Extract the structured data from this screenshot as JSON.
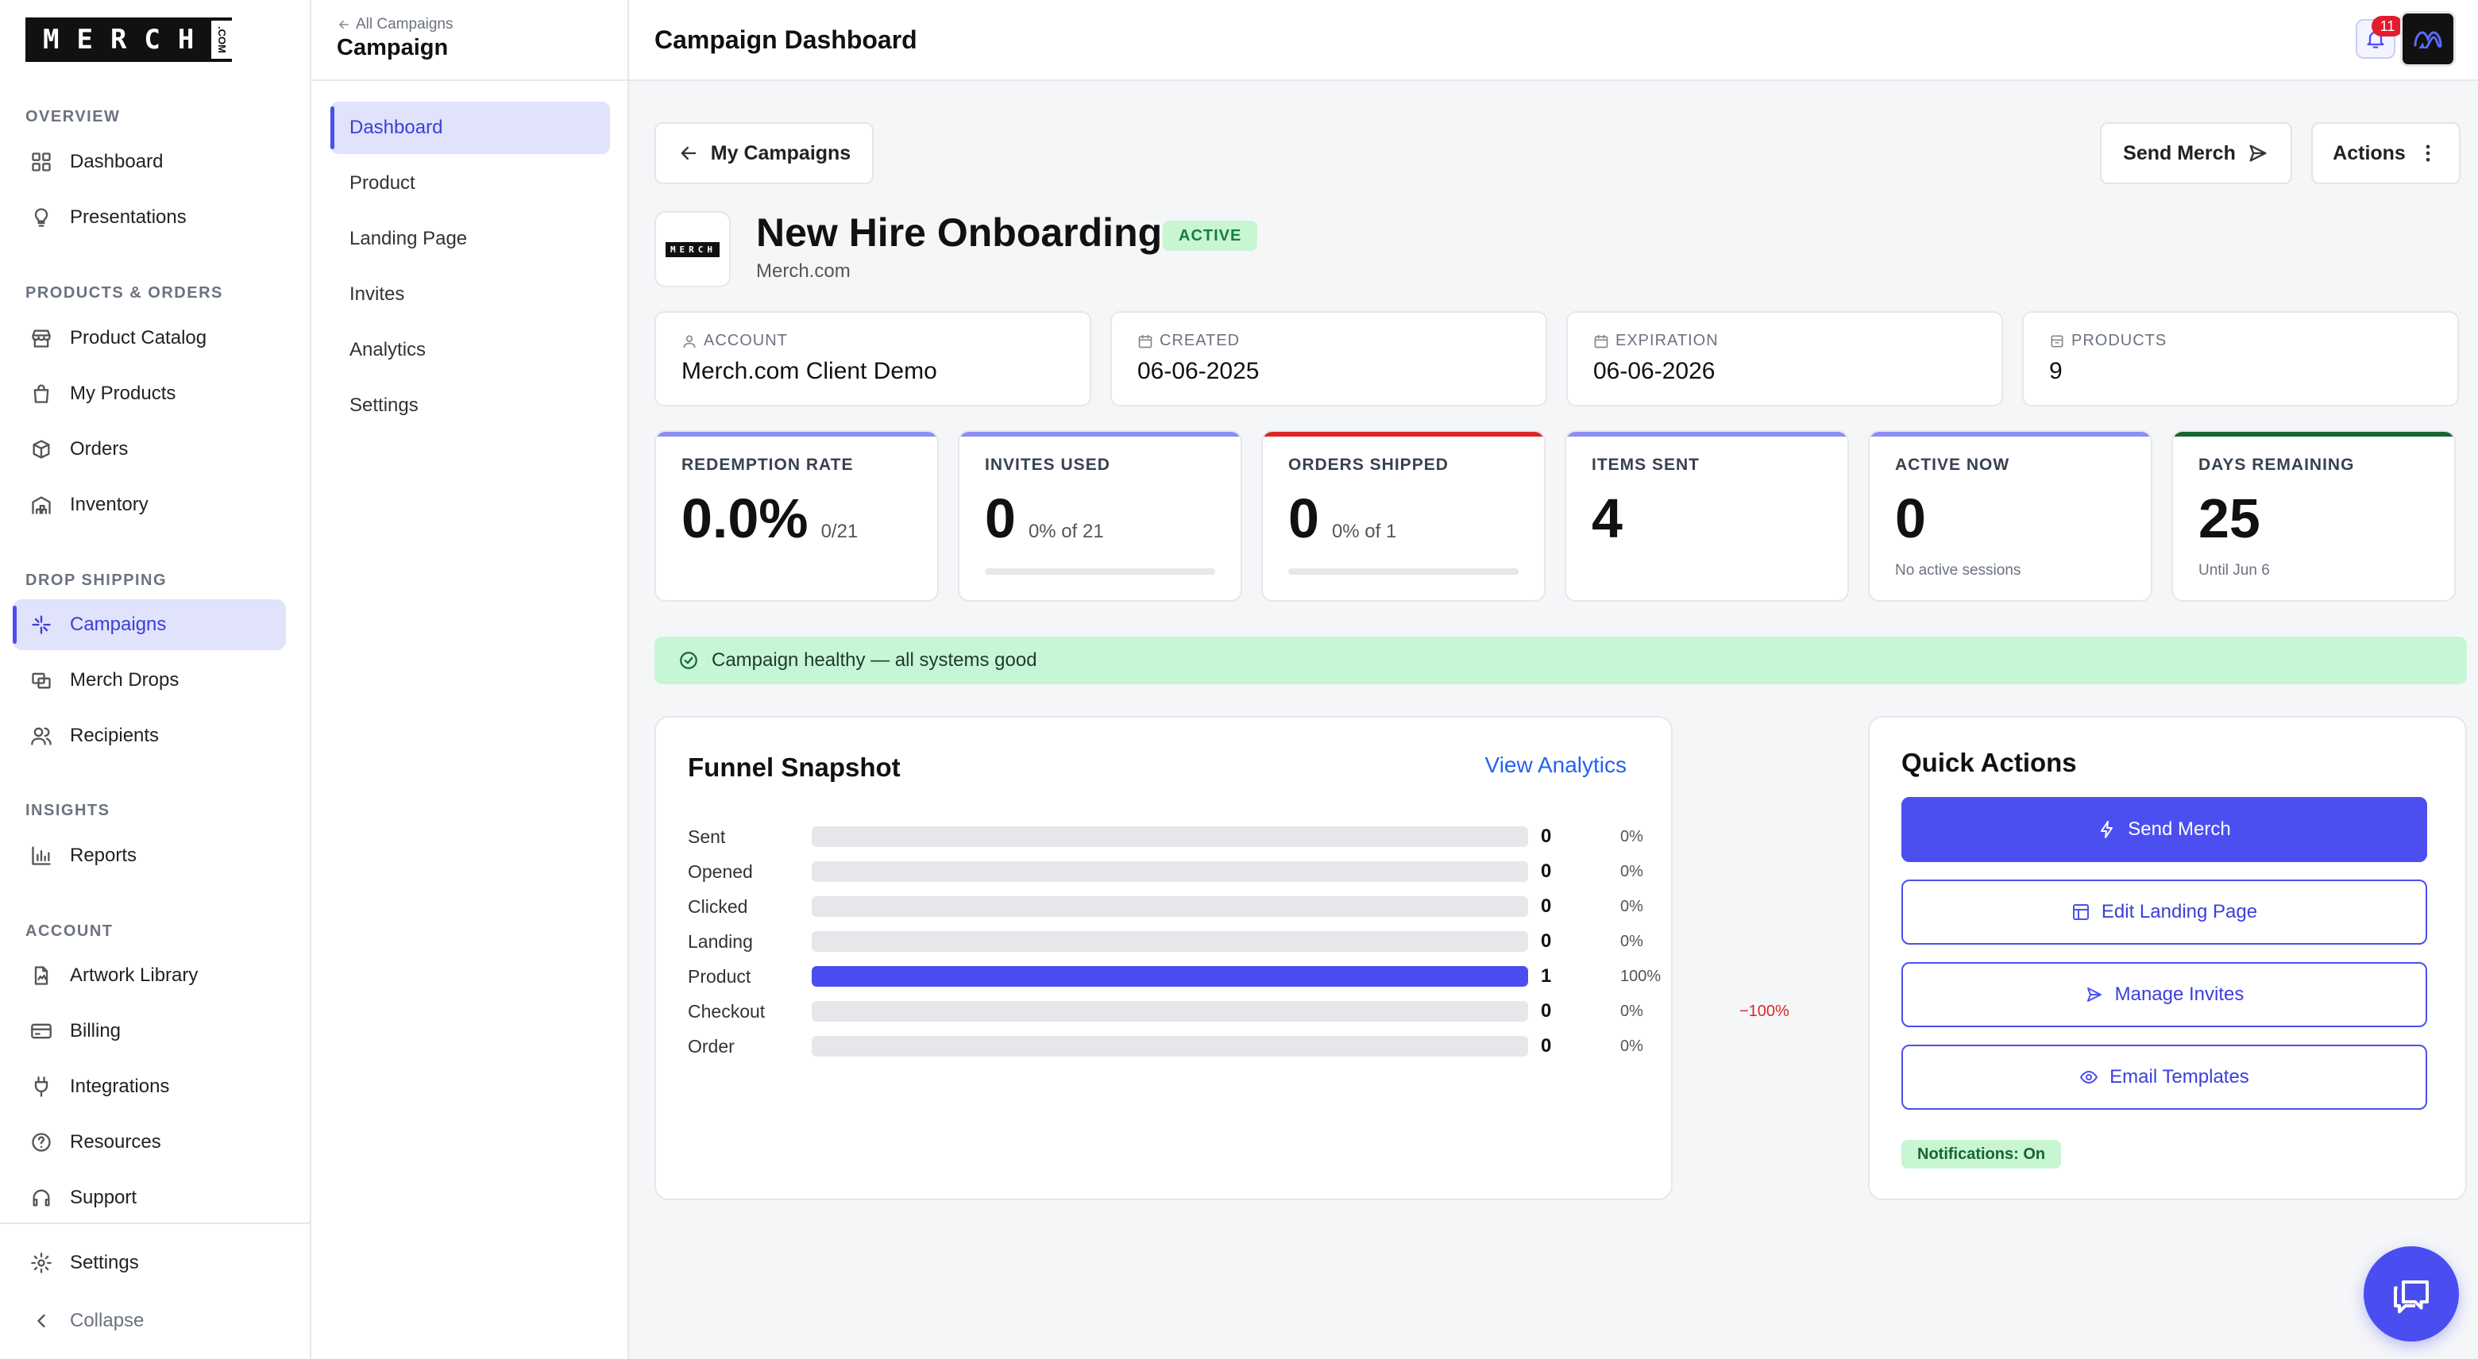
{
  "brand": {
    "logo_text": "MERCH",
    "logo_tail": ".COM"
  },
  "sidebar": {
    "sections": [
      {
        "label": "OVERVIEW"
      },
      {
        "label": "PRODUCTS & ORDERS"
      },
      {
        "label": "DROP SHIPPING"
      },
      {
        "label": "INSIGHTS"
      },
      {
        "label": "ACCOUNT"
      }
    ],
    "items": [
      {
        "label": "Dashboard",
        "icon": "grid-icon"
      },
      {
        "label": "Presentations",
        "icon": "lightbulb-icon"
      },
      {
        "label": "Product Catalog",
        "icon": "store-icon"
      },
      {
        "label": "My Products",
        "icon": "bag-icon"
      },
      {
        "label": "Orders",
        "icon": "box-icon"
      },
      {
        "label": "Inventory",
        "icon": "warehouse-icon"
      },
      {
        "label": "Campaigns",
        "icon": "sparkle-icon",
        "active": true
      },
      {
        "label": "Merch Drops",
        "icon": "drops-icon"
      },
      {
        "label": "Recipients",
        "icon": "users-icon"
      },
      {
        "label": "Reports",
        "icon": "bar-chart-icon"
      },
      {
        "label": "Artwork Library",
        "icon": "file-image-icon"
      },
      {
        "label": "Billing",
        "icon": "credit-card-icon"
      },
      {
        "label": "Integrations",
        "icon": "plug-icon"
      },
      {
        "label": "Resources",
        "icon": "help-circle-icon"
      },
      {
        "label": "Support",
        "icon": "headphones-icon"
      }
    ],
    "settings": "Settings",
    "collapse": "Collapse"
  },
  "subnav": {
    "back": "All Campaigns",
    "title": "Campaign",
    "items": [
      "Dashboard",
      "Product",
      "Landing Page",
      "Invites",
      "Analytics",
      "Settings"
    ],
    "active": "Dashboard"
  },
  "header": {
    "title": "Campaign Dashboard",
    "notification_count": "11"
  },
  "toolbar": {
    "back_button": "My Campaigns",
    "send_merch": "Send Merch",
    "actions": "Actions"
  },
  "campaign": {
    "logo_text": "MERCH",
    "name": "New Hire Onboarding",
    "status": "ACTIVE",
    "company": "Merch.com"
  },
  "info_cards": [
    {
      "label": "ACCOUNT",
      "value": "Merch.com Client Demo",
      "icon": "user-icon"
    },
    {
      "label": "CREATED",
      "value": "06-06-2025",
      "icon": "calendar-icon"
    },
    {
      "label": "EXPIRATION",
      "value": "06-06-2026",
      "icon": "calendar-icon"
    },
    {
      "label": "PRODUCTS",
      "value": "9",
      "icon": "package-icon"
    }
  ],
  "stats": [
    {
      "label": "REDEMPTION RATE",
      "value": "0.0%",
      "sub": "0/21",
      "accent": "#8b8ef5"
    },
    {
      "label": "INVITES USED",
      "value": "0",
      "sub": "0% of 21",
      "accent": "#8b8ef5",
      "progress": 0
    },
    {
      "label": "ORDERS SHIPPED",
      "value": "0",
      "sub": "0% of 1",
      "accent": "#dc2626",
      "progress": 0
    },
    {
      "label": "ITEMS SENT",
      "value": "4",
      "sub": "",
      "accent": "#8b8ef5"
    },
    {
      "label": "ACTIVE NOW",
      "value": "0",
      "note": "No active sessions",
      "accent": "#8b8ef5"
    },
    {
      "label": "DAYS REMAINING",
      "value": "25",
      "note": "Until Jun 6",
      "accent": "#166534"
    }
  ],
  "health": {
    "text": "Campaign healthy — all systems good",
    "color": "#c6f6d5"
  },
  "funnel": {
    "title": "Funnel Snapshot",
    "link": "View Analytics",
    "rows": [
      {
        "label": "Sent",
        "count": "0",
        "pct": "0%",
        "fill": 0,
        "delta": ""
      },
      {
        "label": "Opened",
        "count": "0",
        "pct": "0%",
        "fill": 0,
        "delta": ""
      },
      {
        "label": "Clicked",
        "count": "0",
        "pct": "0%",
        "fill": 0,
        "delta": ""
      },
      {
        "label": "Landing",
        "count": "0",
        "pct": "0%",
        "fill": 0,
        "delta": ""
      },
      {
        "label": "Product",
        "count": "1",
        "pct": "100%",
        "fill": 1,
        "delta": ""
      },
      {
        "label": "Checkout",
        "count": "0",
        "pct": "0%",
        "fill": 0,
        "delta": "−100%"
      },
      {
        "label": "Order",
        "count": "0",
        "pct": "0%",
        "fill": 0,
        "delta": ""
      }
    ]
  },
  "quick_actions": {
    "title": "Quick Actions",
    "buttons": [
      {
        "label": "Send Merch",
        "icon": "bolt-icon"
      },
      {
        "label": "Edit Landing Page",
        "icon": "layout-icon"
      },
      {
        "label": "Manage Invites",
        "icon": "send-icon"
      },
      {
        "label": "Email Templates",
        "icon": "eye-icon"
      }
    ],
    "notifications": "Notifications: On"
  },
  "colors": {
    "accent": "#4c4ff0",
    "success_bg": "#c8f5d2",
    "danger": "#dc2626"
  }
}
